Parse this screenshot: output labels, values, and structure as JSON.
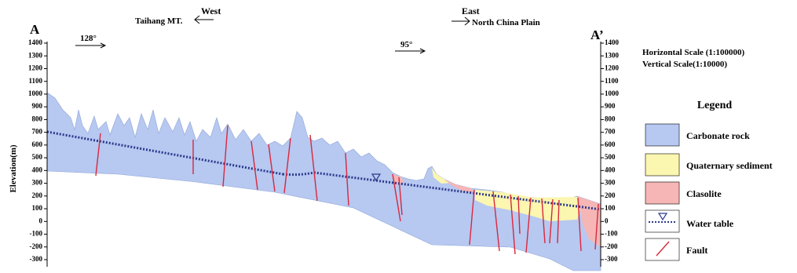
{
  "header": {
    "left_end": "A",
    "right_end": "A’",
    "west": "West",
    "east": "East",
    "west_place": "Taihang MT.",
    "east_place": "North China Plain",
    "left_dip": "128°",
    "right_dip": "95°"
  },
  "axis": {
    "label": "Elevation(m)",
    "ylim": [
      -350,
      1400
    ],
    "yticks": [
      1400,
      1300,
      1200,
      1100,
      1000,
      900,
      800,
      700,
      600,
      500,
      400,
      300,
      200,
      100,
      0,
      -100,
      -200,
      -300
    ]
  },
  "scales": {
    "horizontal": "Horizontal Scale (1:100000)",
    "vertical": "Vertical Scale(1:10000)"
  },
  "legend": {
    "title": "Legend",
    "items": [
      "Carbonate rock",
      "Quaternary sediment",
      "Clasolite",
      "Water table",
      "Fault"
    ]
  }
}
